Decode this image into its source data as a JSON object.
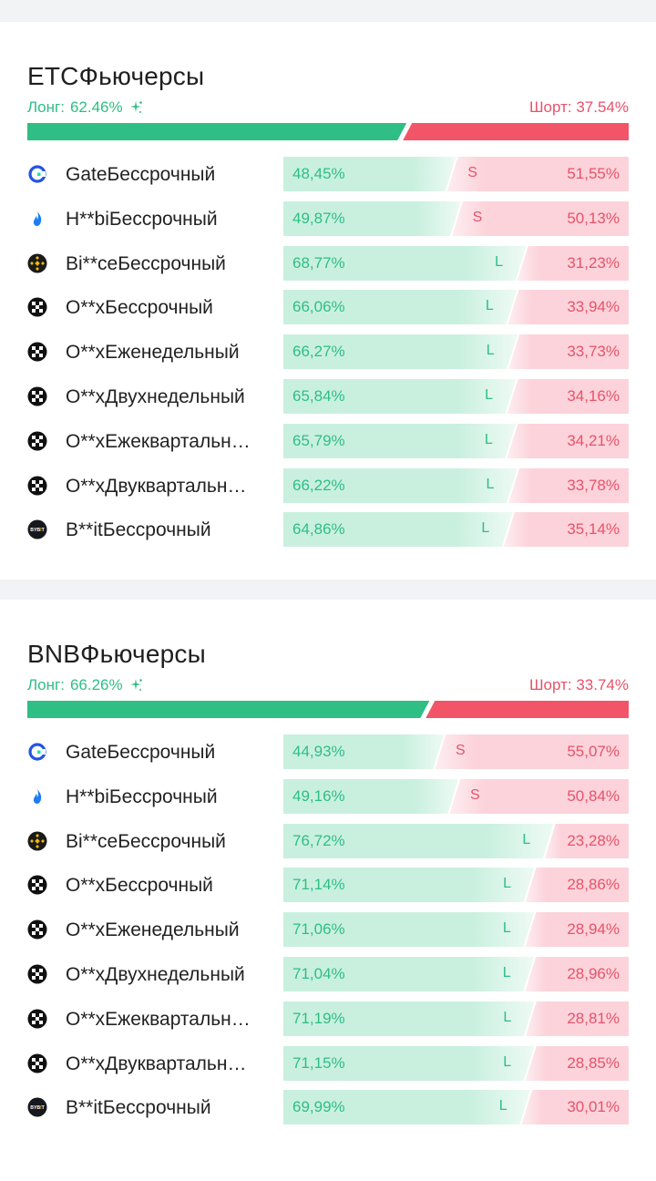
{
  "colors": {
    "long": "#2fbe84",
    "short": "#f25468",
    "long_light": "#c9f0df",
    "short_light": "#fcd3da"
  },
  "sections": [
    {
      "title": "ETCФьючерсы",
      "long_label": "Лонг:",
      "long_value": "62.46%",
      "short_label": "Шорт:",
      "short_value": "37.54%",
      "long_fraction": 0.6246,
      "rows": [
        {
          "icon": "gate-icon",
          "name": "GateБессрочный",
          "long": "48,45%",
          "short": "51,55%",
          "long_fraction": 0.4845,
          "badge": "S"
        },
        {
          "icon": "htx-icon",
          "name": "H**biБессрочный",
          "long": "49,87%",
          "short": "50,13%",
          "long_fraction": 0.4987,
          "badge": "S"
        },
        {
          "icon": "binance-icon",
          "name": "Bi**ceБессрочный",
          "long": "68,77%",
          "short": "31,23%",
          "long_fraction": 0.6877,
          "badge": "L"
        },
        {
          "icon": "okx-icon",
          "name": "O**xБессрочный",
          "long": "66,06%",
          "short": "33,94%",
          "long_fraction": 0.6606,
          "badge": "L"
        },
        {
          "icon": "okx-icon",
          "name": "O**xЕженедельный",
          "long": "66,27%",
          "short": "33,73%",
          "long_fraction": 0.6627,
          "badge": "L"
        },
        {
          "icon": "okx-icon",
          "name": "O**xДвухнедельный",
          "long": "65,84%",
          "short": "34,16%",
          "long_fraction": 0.6584,
          "badge": "L"
        },
        {
          "icon": "okx-icon",
          "name": "O**xЕжеквартальн…",
          "long": "65,79%",
          "short": "34,21%",
          "long_fraction": 0.6579,
          "badge": "L"
        },
        {
          "icon": "okx-icon",
          "name": "O**xДвуквартальн…",
          "long": "66,22%",
          "short": "33,78%",
          "long_fraction": 0.6622,
          "badge": "L"
        },
        {
          "icon": "bybit-icon",
          "name": "B**itБессрочный",
          "long": "64,86%",
          "short": "35,14%",
          "long_fraction": 0.6486,
          "badge": "L"
        }
      ]
    },
    {
      "title": "BNBФьючерсы",
      "long_label": "Лонг:",
      "long_value": "66.26%",
      "short_label": "Шорт:",
      "short_value": "33.74%",
      "long_fraction": 0.6626,
      "rows": [
        {
          "icon": "gate-icon",
          "name": "GateБессрочный",
          "long": "44,93%",
          "short": "55,07%",
          "long_fraction": 0.4493,
          "badge": "S"
        },
        {
          "icon": "htx-icon",
          "name": "H**biБессрочный",
          "long": "49,16%",
          "short": "50,84%",
          "long_fraction": 0.4916,
          "badge": "S"
        },
        {
          "icon": "binance-icon",
          "name": "Bi**ceБессрочный",
          "long": "76,72%",
          "short": "23,28%",
          "long_fraction": 0.7672,
          "badge": "L"
        },
        {
          "icon": "okx-icon",
          "name": "O**xБессрочный",
          "long": "71,14%",
          "short": "28,86%",
          "long_fraction": 0.7114,
          "badge": "L"
        },
        {
          "icon": "okx-icon",
          "name": "O**xЕженедельный",
          "long": "71,06%",
          "short": "28,94%",
          "long_fraction": 0.7106,
          "badge": "L"
        },
        {
          "icon": "okx-icon",
          "name": "O**xДвухнедельный",
          "long": "71,04%",
          "short": "28,96%",
          "long_fraction": 0.7104,
          "badge": "L"
        },
        {
          "icon": "okx-icon",
          "name": "O**xЕжеквартальн…",
          "long": "71,19%",
          "short": "28,81%",
          "long_fraction": 0.7119,
          "badge": "L"
        },
        {
          "icon": "okx-icon",
          "name": "O**xДвуквартальн…",
          "long": "71,15%",
          "short": "28,85%",
          "long_fraction": 0.7115,
          "badge": "L"
        },
        {
          "icon": "bybit-icon",
          "name": "B**itБессрочный",
          "long": "69,99%",
          "short": "30,01%",
          "long_fraction": 0.6999,
          "badge": "L"
        }
      ]
    }
  ]
}
